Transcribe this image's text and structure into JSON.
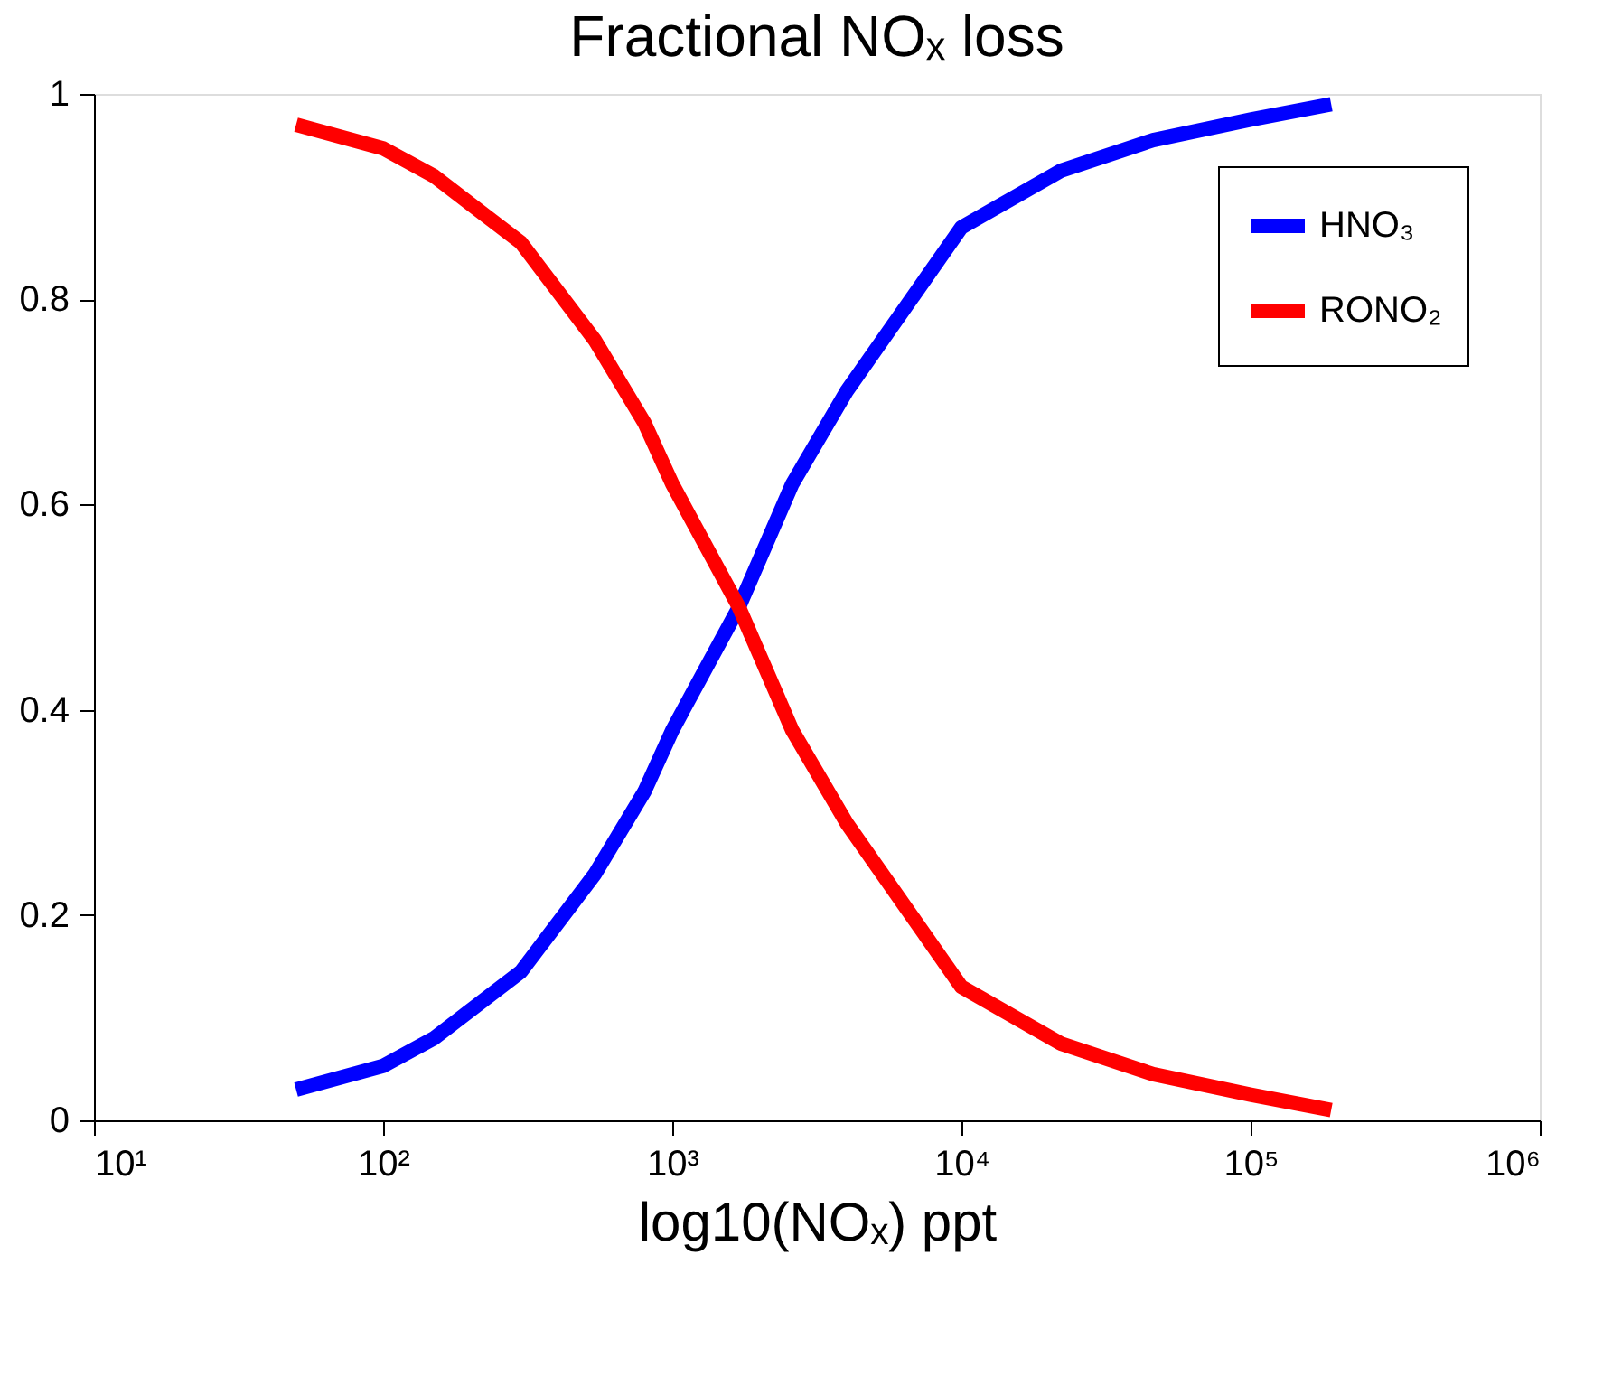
{
  "chart_data": {
    "type": "line",
    "title": "Fractional NOₓ loss",
    "xlabel": "log10(NOₓ) ppt",
    "log": "x",
    "xlim": [
      10,
      1000000
    ],
    "xticks": [
      {
        "value": 10,
        "label": "10¹"
      },
      {
        "value": 100,
        "label": "10²"
      },
      {
        "value": 1000,
        "label": "10³"
      },
      {
        "value": 10000,
        "label": "10⁴"
      },
      {
        "value": 100000,
        "label": "10⁵"
      },
      {
        "value": 1000000,
        "label": "10⁶"
      }
    ],
    "ylim": [
      0,
      1
    ],
    "yticks": [
      0,
      0.2,
      0.4,
      0.6,
      0.8,
      1
    ],
    "x": [
      50,
      100,
      150,
      300,
      540,
      800,
      1000,
      1700,
      2600,
      4000,
      10000,
      22000,
      46000,
      100000,
      190000
    ],
    "series": [
      {
        "name": "HNO₃",
        "color": "#0000ff",
        "values": [
          0.03,
          0.053,
          0.08,
          0.145,
          0.24,
          0.32,
          0.38,
          0.5,
          0.62,
          0.71,
          0.87,
          0.925,
          0.955,
          0.975,
          0.99
        ]
      },
      {
        "name": "RONO₂",
        "color": "#ff0000",
        "values": [
          0.97,
          0.947,
          0.92,
          0.855,
          0.76,
          0.68,
          0.62,
          0.5,
          0.38,
          0.29,
          0.13,
          0.075,
          0.045,
          0.025,
          0.01
        ]
      }
    ],
    "legend": "top right",
    "grid": false,
    "line_style": "solid",
    "marker": "none"
  }
}
